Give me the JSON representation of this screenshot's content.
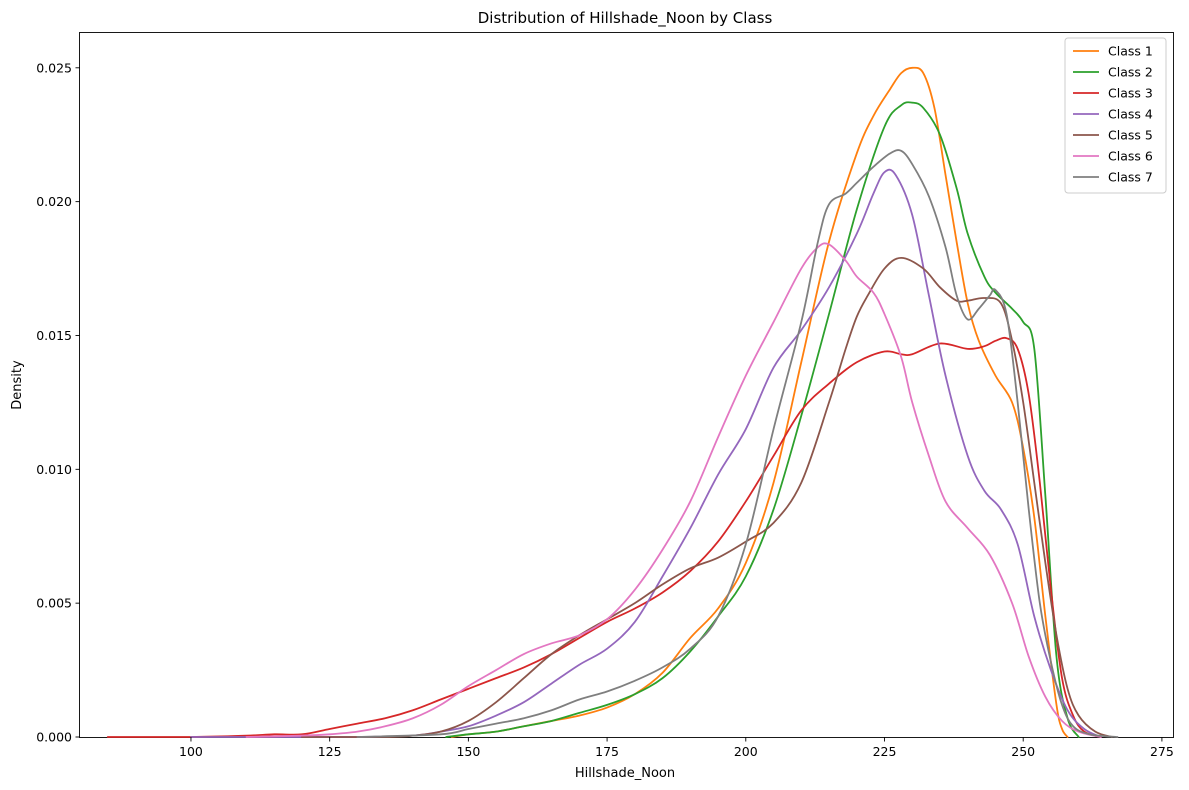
{
  "chart_data": {
    "type": "line",
    "title": "Distribution of Hillshade_Noon by Class",
    "xlabel": "Hillshade_Noon",
    "ylabel": "Density",
    "xlim": [
      80,
      277
    ],
    "ylim": [
      0,
      0.0263
    ],
    "xticks": [
      100,
      125,
      150,
      175,
      200,
      225,
      250,
      275
    ],
    "xtick_labels": [
      "100",
      "125",
      "150",
      "175",
      "200",
      "225",
      "250",
      "275"
    ],
    "yticks": [
      0,
      0.005,
      0.01,
      0.015,
      0.02,
      0.025
    ],
    "ytick_labels": [
      "0.000",
      "0.005",
      "0.010",
      "0.015",
      "0.020",
      "0.025"
    ],
    "grid": false,
    "legend_position": "top-right",
    "series": [
      {
        "name": "Class 1",
        "color": "#ff7f0e",
        "x": [
          147,
          150,
          155,
          160,
          165,
          170,
          175,
          180,
          185,
          190,
          195,
          200,
          205,
          210,
          215,
          220,
          223,
          226,
          228,
          230,
          232,
          234,
          236,
          238,
          240,
          242,
          245,
          248,
          250,
          252,
          254,
          256,
          257,
          258
        ],
        "y": [
          0,
          0.0001,
          0.0002,
          0.0004,
          0.0006,
          0.0008,
          0.0011,
          0.0016,
          0.0024,
          0.0037,
          0.0048,
          0.0065,
          0.0095,
          0.014,
          0.0185,
          0.0218,
          0.0232,
          0.0242,
          0.0248,
          0.025,
          0.0248,
          0.0235,
          0.021,
          0.0185,
          0.0162,
          0.0148,
          0.0135,
          0.0125,
          0.0108,
          0.0082,
          0.0045,
          0.0012,
          0.0003,
          0
        ]
      },
      {
        "name": "Class 2",
        "color": "#2ca02c",
        "x": [
          146,
          150,
          155,
          160,
          165,
          170,
          175,
          180,
          185,
          190,
          195,
          200,
          205,
          210,
          215,
          220,
          225,
          228,
          230,
          232,
          235,
          238,
          240,
          243,
          245,
          248,
          250,
          252,
          254,
          256,
          258,
          260
        ],
        "y": [
          0,
          0.0001,
          0.0002,
          0.0004,
          0.0006,
          0.0009,
          0.0012,
          0.0016,
          0.0022,
          0.0032,
          0.0045,
          0.006,
          0.0085,
          0.012,
          0.0158,
          0.0197,
          0.0228,
          0.0236,
          0.0237,
          0.0235,
          0.0225,
          0.0205,
          0.0188,
          0.0172,
          0.0166,
          0.016,
          0.0155,
          0.0145,
          0.009,
          0.003,
          0.0007,
          0
        ]
      },
      {
        "name": "Class 3",
        "color": "#d62728",
        "x": [
          85,
          100,
          110,
          115,
          120,
          125,
          130,
          135,
          140,
          145,
          150,
          155,
          160,
          165,
          170,
          175,
          180,
          185,
          190,
          195,
          200,
          205,
          210,
          215,
          220,
          225,
          228,
          230,
          235,
          240,
          243,
          245,
          247,
          249,
          251,
          253,
          255,
          257,
          259,
          261,
          264
        ],
        "y": [
          0,
          0,
          5e-05,
          0.0001,
          0.0001,
          0.0003,
          0.0005,
          0.0007,
          0.001,
          0.0014,
          0.0018,
          0.0022,
          0.0026,
          0.0031,
          0.0037,
          0.0043,
          0.0048,
          0.0054,
          0.0062,
          0.0073,
          0.0088,
          0.0105,
          0.0122,
          0.0132,
          0.014,
          0.0144,
          0.0143,
          0.0143,
          0.0147,
          0.0145,
          0.0146,
          0.0148,
          0.0149,
          0.0145,
          0.0128,
          0.0095,
          0.0055,
          0.0022,
          0.0008,
          0.0002,
          0
        ]
      },
      {
        "name": "Class 4",
        "color": "#9467bd",
        "x": [
          100,
          110,
          130,
          140,
          145,
          150,
          155,
          160,
          165,
          170,
          175,
          180,
          185,
          190,
          195,
          200,
          205,
          210,
          215,
          220,
          223,
          225,
          227,
          230,
          233,
          236,
          240,
          243,
          246,
          249,
          252,
          255,
          258,
          261,
          264
        ],
        "y": [
          0,
          0,
          0,
          5e-05,
          0.0002,
          0.0004,
          0.0008,
          0.0013,
          0.002,
          0.0027,
          0.0033,
          0.0043,
          0.006,
          0.0078,
          0.0098,
          0.0115,
          0.0138,
          0.0152,
          0.0168,
          0.0188,
          0.0203,
          0.0211,
          0.021,
          0.0195,
          0.0165,
          0.0135,
          0.0105,
          0.0092,
          0.0085,
          0.0072,
          0.0045,
          0.0025,
          0.001,
          0.0003,
          0
        ]
      },
      {
        "name": "Class 5",
        "color": "#8c564b",
        "x": [
          120,
          135,
          140,
          145,
          150,
          155,
          160,
          165,
          170,
          175,
          180,
          185,
          190,
          195,
          200,
          205,
          210,
          215,
          218,
          220,
          222,
          225,
          228,
          232,
          235,
          238,
          240,
          243,
          246,
          248,
          250,
          252,
          254,
          256,
          258,
          260,
          263,
          266
        ],
        "y": [
          0,
          0,
          5e-05,
          0.0002,
          0.0006,
          0.0013,
          0.0022,
          0.0031,
          0.0038,
          0.0044,
          0.005,
          0.0057,
          0.0063,
          0.0067,
          0.0073,
          0.008,
          0.0095,
          0.0125,
          0.0145,
          0.0157,
          0.0165,
          0.0175,
          0.0179,
          0.0175,
          0.0168,
          0.0163,
          0.0163,
          0.0164,
          0.0162,
          0.0148,
          0.0125,
          0.0095,
          0.0065,
          0.0038,
          0.0018,
          0.0008,
          0.0002,
          0
        ]
      },
      {
        "name": "Class 6",
        "color": "#e377c2",
        "x": [
          110,
          120,
          125,
          130,
          135,
          140,
          145,
          150,
          155,
          160,
          165,
          170,
          175,
          180,
          185,
          190,
          195,
          200,
          205,
          210,
          213,
          215,
          218,
          220,
          223,
          225,
          228,
          230,
          233,
          236,
          240,
          244,
          248,
          251,
          254,
          257,
          260,
          264
        ],
        "y": [
          0,
          5e-05,
          0.0001,
          0.0002,
          0.0004,
          0.0007,
          0.0012,
          0.0019,
          0.0025,
          0.0031,
          0.0035,
          0.0038,
          0.0044,
          0.0055,
          0.007,
          0.0088,
          0.0112,
          0.0135,
          0.0155,
          0.0175,
          0.0183,
          0.0184,
          0.0178,
          0.0172,
          0.0166,
          0.0158,
          0.0142,
          0.0125,
          0.0105,
          0.0088,
          0.0078,
          0.0068,
          0.005,
          0.003,
          0.0015,
          0.0006,
          0.0002,
          0
        ]
      },
      {
        "name": "Class 7",
        "color": "#7f7f7f",
        "x": [
          130,
          145,
          150,
          155,
          160,
          165,
          170,
          175,
          180,
          185,
          190,
          195,
          200,
          205,
          210,
          213,
          215,
          218,
          220,
          223,
          226,
          228,
          230,
          233,
          236,
          238,
          240,
          242,
          244,
          245,
          247,
          249,
          251,
          253,
          255,
          257,
          259,
          262,
          267
        ],
        "y": [
          0,
          0.0001,
          0.0003,
          0.0005,
          0.0007,
          0.001,
          0.0014,
          0.0017,
          0.0021,
          0.0026,
          0.0033,
          0.0045,
          0.0072,
          0.0115,
          0.0155,
          0.0185,
          0.0199,
          0.0203,
          0.0207,
          0.0213,
          0.0218,
          0.0219,
          0.0214,
          0.0202,
          0.0183,
          0.0165,
          0.0156,
          0.016,
          0.0165,
          0.0167,
          0.0158,
          0.0125,
          0.0085,
          0.005,
          0.0028,
          0.0012,
          0.0004,
          0.0001,
          0
        ]
      }
    ]
  }
}
